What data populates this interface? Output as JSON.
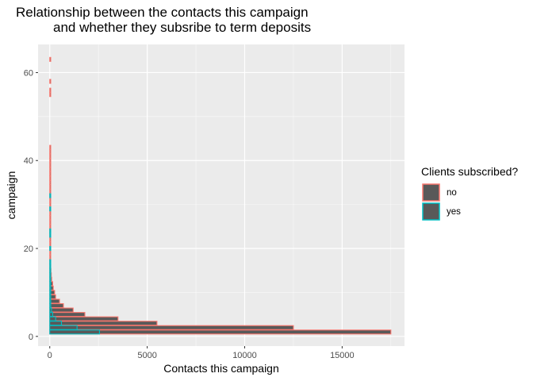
{
  "chart_data": {
    "type": "bar",
    "orientation": "horizontal",
    "title_lines": [
      "Relationship between the contacts this campaign",
      "and whether they subsribe to term deposits"
    ],
    "xlabel": "Contacts this campaign",
    "ylabel": "campaign",
    "xlim": [
      -600,
      18200
    ],
    "ylim": [
      -2.2,
      66.4
    ],
    "x_ticks": [
      0,
      5000,
      10000,
      15000
    ],
    "x_tick_labels": [
      "0",
      "5000",
      "10000",
      "15000"
    ],
    "y_ticks": [
      0,
      20,
      40,
      60
    ],
    "y_tick_labels": [
      "0",
      "20",
      "40",
      "60"
    ],
    "grid": true,
    "panel_background": "#ebebeb",
    "legend": {
      "title": "Clients subscribed?",
      "position": "right",
      "entries": [
        "no",
        "yes"
      ]
    },
    "bar_fill": "#595959",
    "series": [
      {
        "name": "no",
        "color": "#f8766d",
        "categories": [
          1,
          2,
          3,
          4,
          5,
          6,
          7,
          8,
          9,
          10,
          11,
          12,
          13,
          14,
          15,
          16,
          17,
          18,
          19,
          20,
          21,
          22,
          23,
          24,
          25,
          26,
          27,
          28,
          29,
          30,
          31,
          32,
          33,
          34,
          35,
          36,
          37,
          38,
          39,
          40,
          41,
          42,
          43,
          55,
          56,
          58,
          63
        ],
        "values": [
          17500,
          12500,
          5500,
          3500,
          1800,
          1200,
          700,
          500,
          300,
          250,
          180,
          150,
          100,
          80,
          60,
          50,
          40,
          30,
          25,
          20,
          20,
          15,
          15,
          10,
          10,
          10,
          8,
          8,
          6,
          6,
          5,
          5,
          4,
          4,
          3,
          3,
          3,
          2,
          2,
          2,
          2,
          2,
          2,
          2,
          2,
          2,
          2
        ]
      },
      {
        "name": "yes",
        "color": "#00bfc4",
        "categories": [
          1,
          2,
          3,
          4,
          5,
          6,
          7,
          8,
          9,
          10,
          11,
          12,
          13,
          14,
          15,
          16,
          17,
          20,
          23,
          24,
          29,
          32
        ],
        "values": [
          2550,
          1400,
          600,
          300,
          150,
          90,
          50,
          30,
          20,
          15,
          12,
          10,
          8,
          6,
          5,
          4,
          3,
          2,
          2,
          2,
          1,
          1
        ]
      }
    ]
  }
}
